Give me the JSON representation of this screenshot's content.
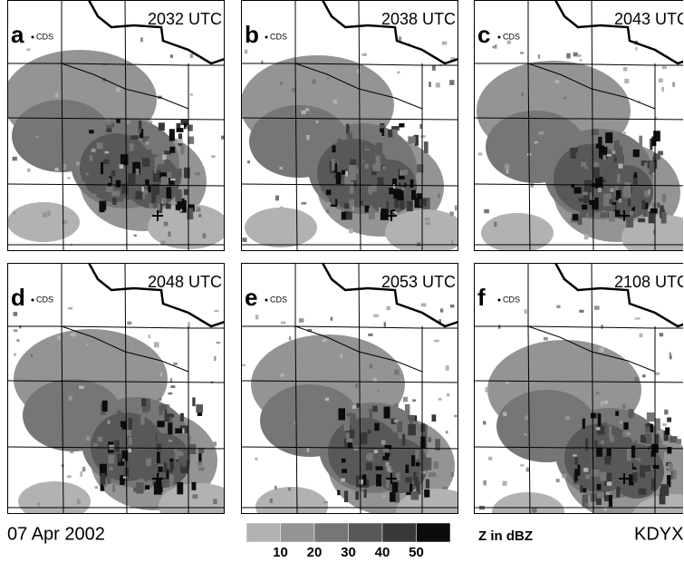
{
  "panels": [
    {
      "label": "a",
      "time": "2032 UTC",
      "station": "CDS"
    },
    {
      "label": "b",
      "time": "2038 UTC",
      "station": "CDS"
    },
    {
      "label": "c",
      "time": "2043 UTC",
      "station": "CDS"
    },
    {
      "label": "d",
      "time": "2048 UTC",
      "station": "CDS"
    },
    {
      "label": "e",
      "time": "2053 UTC",
      "station": "CDS"
    },
    {
      "label": "f",
      "time": "2108 UTC",
      "station": "CDS"
    }
  ],
  "date": "07 Apr 2002",
  "radar": "KDYX",
  "colorbar": {
    "label": "Z in dBZ",
    "ticks": [
      10,
      20,
      30,
      40,
      50
    ],
    "colors": [
      "#b2b2b2",
      "#949494",
      "#767676",
      "#585858",
      "#383838",
      "#0c0c0c"
    ]
  }
}
